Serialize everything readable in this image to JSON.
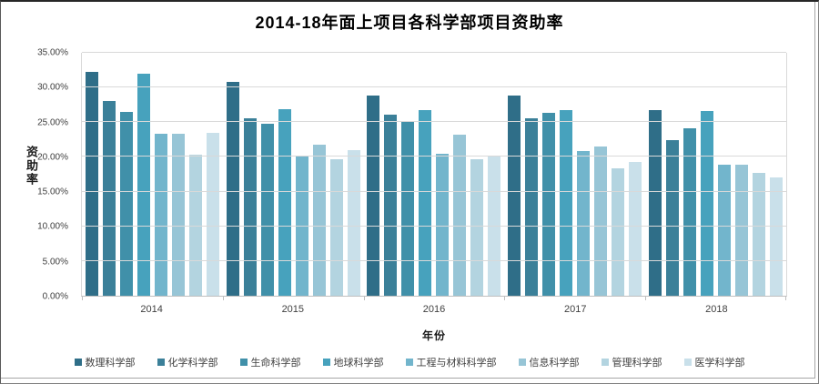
{
  "chart_data": {
    "type": "bar",
    "title": "2014-18年面上项目各科学部项目资助率",
    "xlabel": "年份",
    "ylabel": "资助率",
    "categories": [
      "2014",
      "2015",
      "2016",
      "2017",
      "2018"
    ],
    "series": [
      {
        "name": "数理科学部",
        "color": "#2F6E88",
        "values": [
          32.2,
          30.8,
          28.9,
          28.9,
          26.7
        ]
      },
      {
        "name": "化学科学部",
        "color": "#3B8099",
        "values": [
          28.0,
          25.5,
          26.1,
          25.5,
          22.4
        ]
      },
      {
        "name": "生命科学部",
        "color": "#4090A9",
        "values": [
          26.5,
          24.8,
          25.0,
          26.3,
          24.1
        ]
      },
      {
        "name": "地球科学部",
        "color": "#47A2BD",
        "values": [
          32.0,
          26.9,
          26.8,
          26.8,
          26.6
        ]
      },
      {
        "name": "工程与材料科学部",
        "color": "#72B5CC",
        "values": [
          23.3,
          20.0,
          20.4,
          20.9,
          18.9
        ]
      },
      {
        "name": "信息科学部",
        "color": "#97C5D6",
        "values": [
          23.3,
          21.8,
          23.2,
          21.5,
          18.9
        ]
      },
      {
        "name": "管理科学部",
        "color": "#B3D4E0",
        "values": [
          20.3,
          19.6,
          19.6,
          18.4,
          17.7
        ]
      },
      {
        "name": "医学科学部",
        "color": "#C9E0EA",
        "values": [
          23.5,
          21.0,
          20.1,
          19.3,
          17.0
        ]
      }
    ],
    "ylim": [
      0,
      35
    ],
    "ytick_step": 5,
    "ytick_labels": [
      "0.00%",
      "5.00%",
      "10.00%",
      "15.00%",
      "20.00%",
      "25.00%",
      "30.00%",
      "35.00%"
    ],
    "grid": true,
    "legend_position": "bottom"
  },
  "colors": {
    "gridline": "#d9d9d9",
    "axis_line": "#bfbfbf",
    "tick_text": "#404040",
    "title_text": "#000000"
  }
}
